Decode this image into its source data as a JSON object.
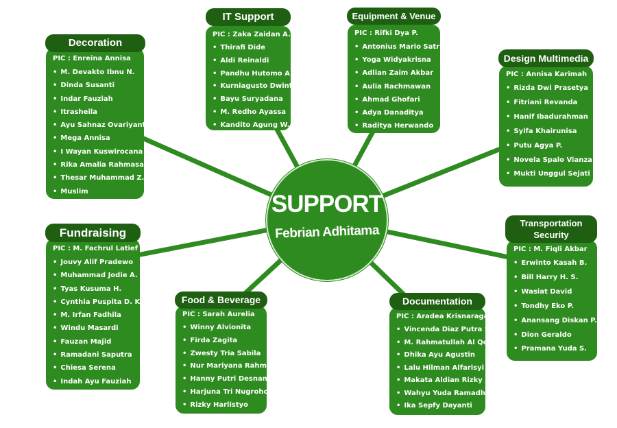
{
  "center": {
    "title": "SUPPORT",
    "subtitle": "Febrian Adhitama"
  },
  "groups": {
    "decoration": {
      "title": "Decoration",
      "pic": "PIC : Enreina Annisa",
      "members": [
        "M. Devakto Ibnu N.",
        "Dinda Susanti",
        "Indar Fauziah",
        "Itrasheila",
        "Ayu Sahnaz Ovariyanti",
        "Mega Annisa",
        "I Wayan Kuswirocana",
        "Rika Amalia Rahmasari",
        "Thesar Muhammad Z.",
        "Muslim"
      ]
    },
    "it_support": {
      "title": "IT Support",
      "pic": "PIC : Zaka Zaidan A.",
      "members": [
        "Thirafi Dide",
        "Aldi Reinaldi",
        "Pandhu Hutomo A.",
        "Kurniagusto Dwinto",
        "Bayu Suryadana",
        "M. Redho Ayassa",
        "Kandito Agung W."
      ]
    },
    "equipment_venue": {
      "title": "Equipment & Venue",
      "pic": "PIC : Rifki Dya P.",
      "members": [
        "Antonius Mario Satria",
        "Yoga Widyakrisna",
        "Adlian Zaim Akbar",
        "Aulia Rachmawan",
        "Ahmad Ghofari",
        "Adya Danaditya",
        "Raditya Herwando"
      ]
    },
    "design_multimedia": {
      "title": "Design Multimedia",
      "pic": "PIC : Annisa Karimah",
      "members": [
        "Rizda Dwi Prasetya",
        "Fitriani Revanda",
        "Hanif Ibadurahman",
        "Syifa Khairunisa",
        "Putu Agya P.",
        "Novela Spalo Vianza",
        "Mukti Unggul Sejati"
      ]
    },
    "fundraising": {
      "title": "Fundraising",
      "pic": "PIC : M. Fachrul Latief",
      "members": [
        "Jouvy Alif Pradewo",
        "Muhammad Jodie A.",
        "Tyas Kusuma H.",
        "Cynthia Puspita D. K.",
        "M. Irfan Fadhila",
        "Windu Masardi",
        "Fauzan Majid",
        "Ramadani Saputra",
        "Chiesa Serena",
        "Indah Ayu Fauziah"
      ]
    },
    "food_beverage": {
      "title": "Food & Beverage",
      "pic": "PIC : Sarah Aurelia",
      "members": [
        "Winny Alvionita",
        "Firda Zagita",
        "Zwesty Tria Sabila",
        "Nur Mariyana Rahmah",
        "Hanny Putri Desnantara",
        "Harjuna Tri Nugroho",
        "Rizky Harlistyo"
      ]
    },
    "documentation": {
      "title": "Documentation",
      "pic": "PIC : Aradea Krisnaraga",
      "members": [
        "Vincenda Diaz Putra S.",
        "M. Rahmatullah Al Qodri",
        "Dhika Ayu Agustin",
        "Lalu Hilman Alfarisyi",
        "Makata Aldian Rizky",
        "Wahyu Yuda Ramadhan",
        "Ika Sepfy Dayanti"
      ]
    },
    "transportation_security": {
      "title_line1": "Transportation",
      "title_line2": "Security",
      "pic": "PIC : M. Fiqli Akbar",
      "members": [
        "Erwinto Kasah B.",
        "Bill Harry H. S.",
        "Wasiat David",
        "Tondhy Eko P.",
        "Anansang Diskan P.",
        "Dion Geraldo",
        "Pramana Yuda S."
      ]
    }
  },
  "colors": {
    "box_green": "#2e8b1f",
    "header_green": "#1f5f12",
    "text": "#ffffff"
  }
}
